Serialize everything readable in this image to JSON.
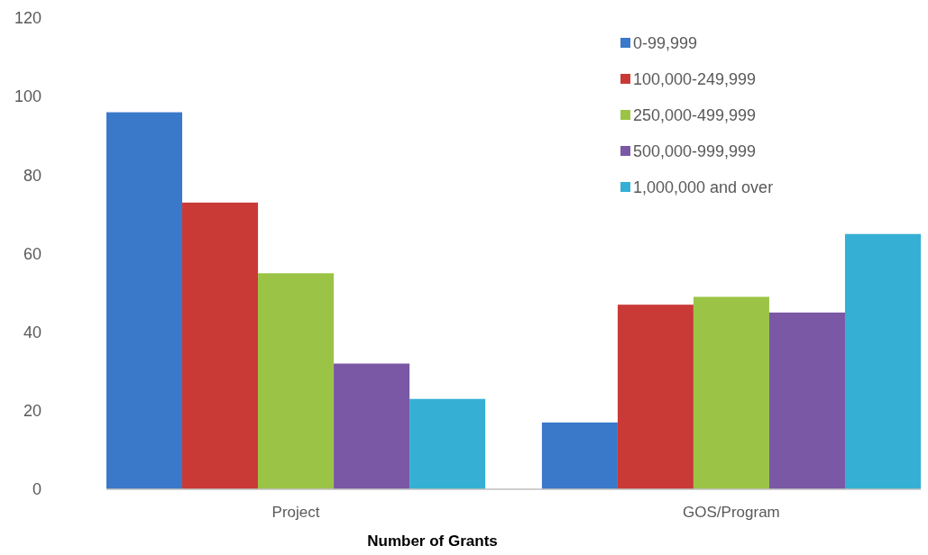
{
  "chart_data": {
    "type": "bar",
    "xlabel": "Number of Grants",
    "categories": [
      "Project",
      "GOS/Program"
    ],
    "series": [
      {
        "name": "0-99,999",
        "color": "#3a78c9",
        "values": [
          96,
          17
        ]
      },
      {
        "name": "100,000-249,999",
        "color": "#c93a36",
        "values": [
          73,
          47
        ]
      },
      {
        "name": "250,000-499,999",
        "color": "#9bc446",
        "values": [
          55,
          49
        ]
      },
      {
        "name": "500,000-999,999",
        "color": "#7a58a6",
        "values": [
          32,
          45
        ]
      },
      {
        "name": "1,000,000 and over",
        "color": "#35b0d4",
        "values": [
          23,
          65
        ]
      }
    ],
    "ylim": [
      0,
      120
    ],
    "yticks": [
      0,
      20,
      40,
      60,
      80,
      100,
      120
    ],
    "grid": false,
    "legend": "top right"
  }
}
